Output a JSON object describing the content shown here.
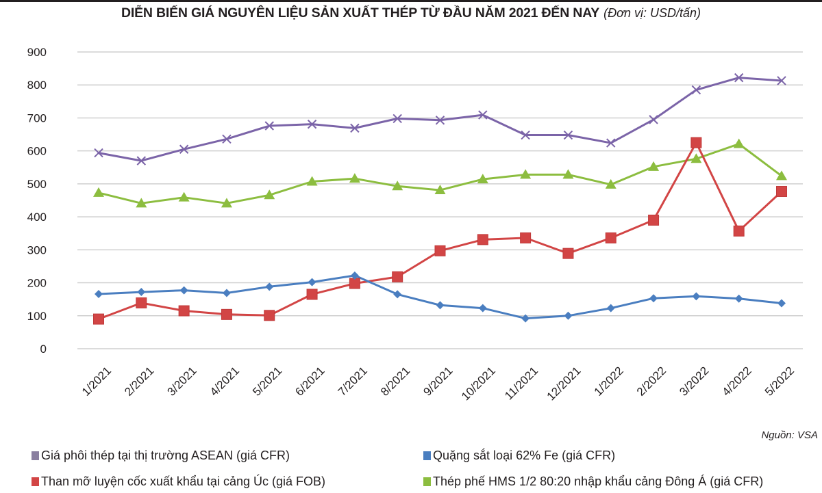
{
  "title": {
    "main": "DIỄN BIẾN GIÁ NGUYÊN LIỆU SẢN XUẤT THÉP TỪ ĐẦU NĂM 2021 ĐẾN NAY",
    "unit": "(Đơn vị: USD/tấn)"
  },
  "source": "Nguồn: VSA",
  "chart_data": {
    "type": "line",
    "title": "DIỄN BIẾN GIÁ NGUYÊN LIỆU SẢN XUẤT THÉP TỪ ĐẦU NĂM 2021 ĐẾN NAY",
    "subtitle": "(Đơn vị: USD/tấn)",
    "xlabel": "",
    "ylabel": "",
    "ylim": [
      0,
      900
    ],
    "yticks": [
      0,
      100,
      200,
      300,
      400,
      500,
      600,
      700,
      800,
      900
    ],
    "grid": true,
    "legend_position": "bottom",
    "categories": [
      "1/2021",
      "2/2021",
      "3/2021",
      "4/2021",
      "5/2021",
      "6/2021",
      "7/2021",
      "8/2021",
      "9/2021",
      "10/2021",
      "11/2021",
      "12/2021",
      "1/2022",
      "2/2022",
      "3/2022",
      "4/2022",
      "5/2022"
    ],
    "series": [
      {
        "name": "Giá phôi thép tại thị trường ASEAN (giá CFR)",
        "color": "#7b64a8",
        "legend_color": "#8a7fa0",
        "marker": "x",
        "values": [
          594,
          570,
          605,
          636,
          676,
          681,
          669,
          698,
          693,
          709,
          648,
          648,
          624,
          695,
          785,
          822,
          813
        ]
      },
      {
        "name": "Quặng sắt loại 62% Fe (giá CFR)",
        "color": "#4a7ec0",
        "legend_color": "#4a7ec0",
        "marker": "diamond",
        "values": [
          166,
          172,
          177,
          169,
          188,
          202,
          222,
          165,
          132,
          123,
          92,
          100,
          123,
          153,
          159,
          152,
          138
        ]
      },
      {
        "name": "Than mỡ luyện cốc xuất khẩu tại cảng Úc (giá FOB)",
        "color": "#d24545",
        "legend_color": "#d24545",
        "marker": "square",
        "values": [
          90,
          139,
          115,
          104,
          101,
          165,
          198,
          218,
          297,
          331,
          336,
          289,
          336,
          390,
          625,
          357,
          477
        ]
      },
      {
        "name": "Thép phế HMS 1/2 80:20 nhập khẩu cảng Đông Á (giá CFR)",
        "color": "#8cbd3f",
        "legend_color": "#8cbd3f",
        "marker": "triangle",
        "values": [
          473,
          441,
          459,
          441,
          466,
          507,
          516,
          493,
          481,
          514,
          528,
          528,
          498,
          552,
          576,
          621,
          524
        ]
      }
    ]
  }
}
